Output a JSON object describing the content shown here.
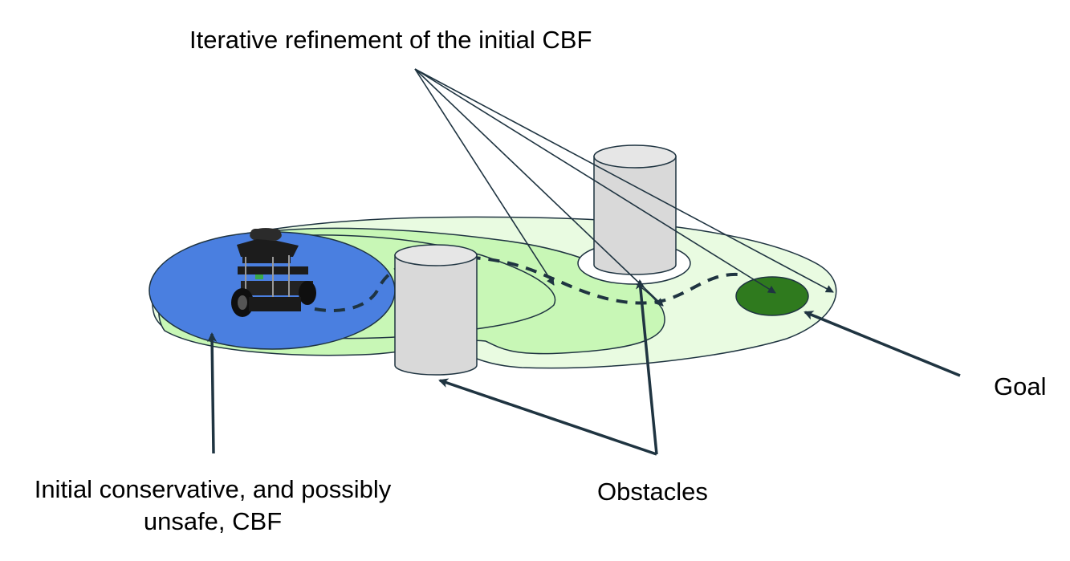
{
  "labels": {
    "refinement": "Iterative refinement of the initial CBF",
    "goal": "Goal",
    "obstacles": "Obstacles",
    "initial_line1": "Initial conservative, and possibly",
    "initial_line2": "unsafe, CBF"
  },
  "colors": {
    "initial_region": "#4a7fe0",
    "refined_outer": "#e9fbe1",
    "refined_mid": "#c8f7b6",
    "goal_region": "#2f7a1e",
    "obstacle_fill": "#d9d9d9",
    "arrow": "#1f3441"
  },
  "icons": {
    "robot": "mobile-robot-icon",
    "obstacle": "cylinder-icon"
  }
}
